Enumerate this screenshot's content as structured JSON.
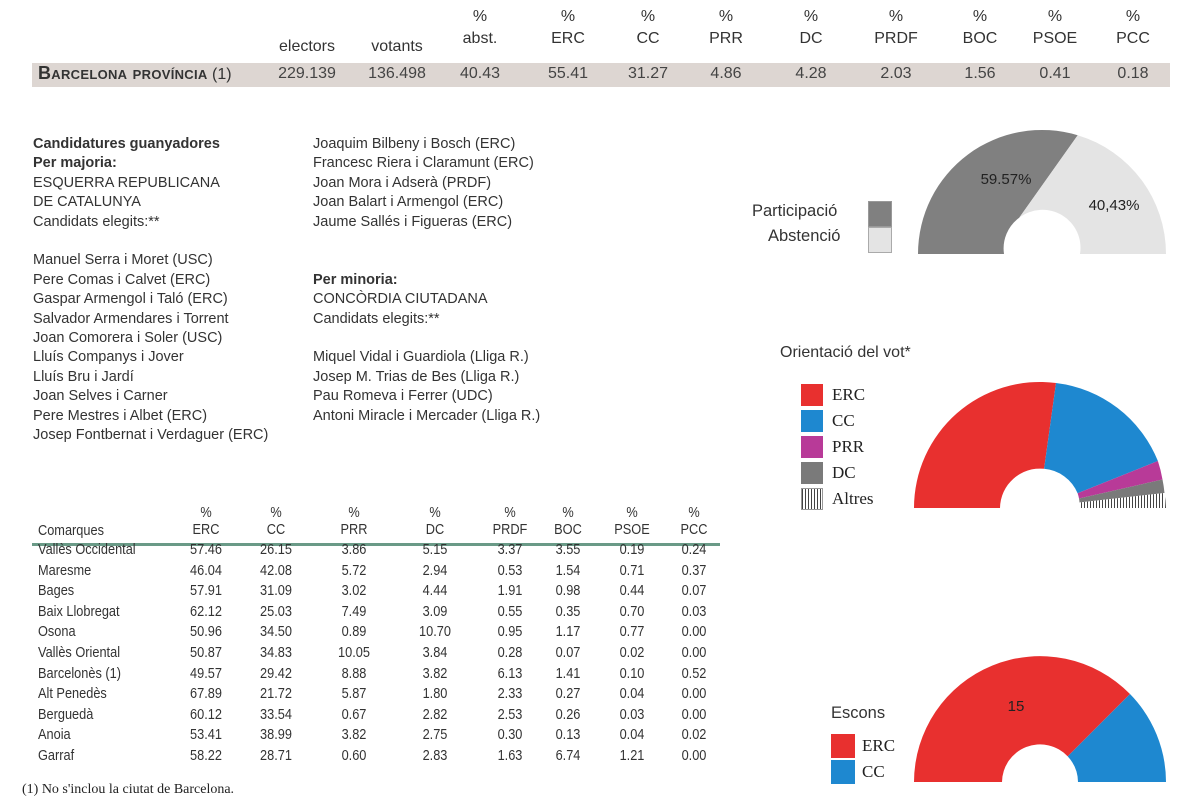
{
  "top_table": {
    "pct_symbol": "%",
    "headers": [
      {
        "pct": "",
        "label": "electors"
      },
      {
        "pct": "",
        "label": "votants"
      },
      {
        "pct": "%",
        "label": "abst."
      },
      {
        "pct": "%",
        "label": "ERC"
      },
      {
        "pct": "%",
        "label": "CC"
      },
      {
        "pct": "%",
        "label": "PRR"
      },
      {
        "pct": "%",
        "label": "DC"
      },
      {
        "pct": "%",
        "label": "PRDF"
      },
      {
        "pct": "%",
        "label": "BOC"
      },
      {
        "pct": "%",
        "label": "PSOE"
      },
      {
        "pct": "%",
        "label": "PCC"
      }
    ],
    "row_name": "Barcelona província",
    "row_note": " (1)",
    "values": [
      "229.139",
      "136.498",
      "40.43",
      "55.41",
      "31.27",
      "4.86",
      "4.28",
      "2.03",
      "1.56",
      "0.41",
      "0.18"
    ]
  },
  "candidates": {
    "title": "Candidatures guanyadores",
    "majority_label": "Per majoria:",
    "majority_party_line1": "ESQUERRA REPUBLICANA",
    "majority_party_line2": "DE CATALUNYA",
    "elected_label": "Candidats elegits:**",
    "majority_list": [
      "Manuel Serra i Moret (USC)",
      "Pere Comas i Calvet (ERC)",
      "Gaspar Armengol i Taló (ERC)",
      "Salvador Armendares i Torrent",
      "Joan Comorera i Soler (USC)",
      "Lluís Companys i Jover",
      "Lluís Bru i Jardí",
      "Joan Selves i Carner",
      "Pere Mestres i Albet (ERC)",
      "Josep Fontbernat i Verdaguer (ERC)"
    ],
    "majority_list_cont": [
      "Joaquim Bilbeny i Bosch (ERC)",
      "Francesc Riera i Claramunt (ERC)",
      "Joan Mora i Adserà (PRDF)",
      "Joan Balart i Armengol (ERC)",
      "Jaume Sallés i Figueras (ERC)"
    ],
    "minority_label": "Per minoria:",
    "minority_party": "CONCÒRDIA CIUTADANA",
    "minority_elected_label": "Candidats elegits:**",
    "minority_list": [
      "Miquel Vidal i Guardiola (Lliga R.)",
      "Josep M. Trias de Bes (Lliga R.)",
      "Pau Romeva i Ferrer (UDC)",
      "Antoni Miracle i Mercader (Lliga R.)"
    ]
  },
  "participation": {
    "legend_participacio": "Participació",
    "legend_abstencio": "Abstenció",
    "label_participacio": "59.57%",
    "label_abstencio": "40,43%",
    "color_participacio": "#808080",
    "color_abstencio": "#e4e4e4"
  },
  "vote": {
    "title": "Orientació del vot*",
    "legend": [
      {
        "name": "ERC",
        "color": "#e8302f"
      },
      {
        "name": "CC",
        "color": "#1e88d0"
      },
      {
        "name": "PRR",
        "color": "#b83a98"
      },
      {
        "name": "DC",
        "color": "#7a7a7a"
      },
      {
        "name": "Altres",
        "color": "#ffffff"
      }
    ]
  },
  "seats": {
    "title": "Escons",
    "erc_label": "15",
    "legend": [
      {
        "name": "ERC",
        "color": "#e8302f"
      },
      {
        "name": "CC",
        "color": "#1e88d0"
      }
    ]
  },
  "comarques": {
    "pct_symbol": "%",
    "header_first": "Comarques",
    "headers": [
      "ERC",
      "CC",
      "PRR",
      "DC",
      "PRDF",
      "BOC",
      "PSOE",
      "PCC"
    ],
    "rows": [
      {
        "name": "Vallès Occidental",
        "vals": [
          "57.46",
          "26.15",
          "3.86",
          "5.15",
          "3.37",
          "3.55",
          "0.19",
          "0.24"
        ]
      },
      {
        "name": "Maresme",
        "vals": [
          "46.04",
          "42.08",
          "5.72",
          "2.94",
          "0.53",
          "1.54",
          "0.71",
          "0.37"
        ]
      },
      {
        "name": "Bages",
        "vals": [
          "57.91",
          "31.09",
          "3.02",
          "4.44",
          "1.91",
          "0.98",
          "0.44",
          "0.07"
        ]
      },
      {
        "name": "Baix Llobregat",
        "vals": [
          "62.12",
          "25.03",
          "7.49",
          "3.09",
          "0.55",
          "0.35",
          "0.70",
          "0.03"
        ]
      },
      {
        "name": "Osona",
        "vals": [
          "50.96",
          "34.50",
          "0.89",
          "10.70",
          "0.95",
          "1.17",
          "0.77",
          "0.00"
        ]
      },
      {
        "name": "Vallès Oriental",
        "vals": [
          "50.87",
          "34.83",
          "10.05",
          "3.84",
          "0.28",
          "0.07",
          "0.02",
          "0.00"
        ]
      },
      {
        "name": "Barcelonès (1)",
        "vals": [
          "49.57",
          "29.42",
          "8.88",
          "3.82",
          "6.13",
          "1.41",
          "0.10",
          "0.52"
        ]
      },
      {
        "name": "Alt Penedès",
        "vals": [
          "67.89",
          "21.72",
          "5.87",
          "1.80",
          "2.33",
          "0.27",
          "0.04",
          "0.00"
        ]
      },
      {
        "name": "Berguedà",
        "vals": [
          "60.12",
          "33.54",
          "0.67",
          "2.82",
          "2.53",
          "0.26",
          "0.03",
          "0.00"
        ]
      },
      {
        "name": "Anoia",
        "vals": [
          "53.41",
          "38.99",
          "3.82",
          "2.75",
          "0.30",
          "0.13",
          "0.04",
          "0.02"
        ]
      },
      {
        "name": "Garraf",
        "vals": [
          "58.22",
          "28.71",
          "0.60",
          "2.83",
          "1.63",
          "6.74",
          "1.21",
          "0.00"
        ]
      }
    ]
  },
  "footnote": "(1) No s'inclou la ciutat de Barcelona."
}
